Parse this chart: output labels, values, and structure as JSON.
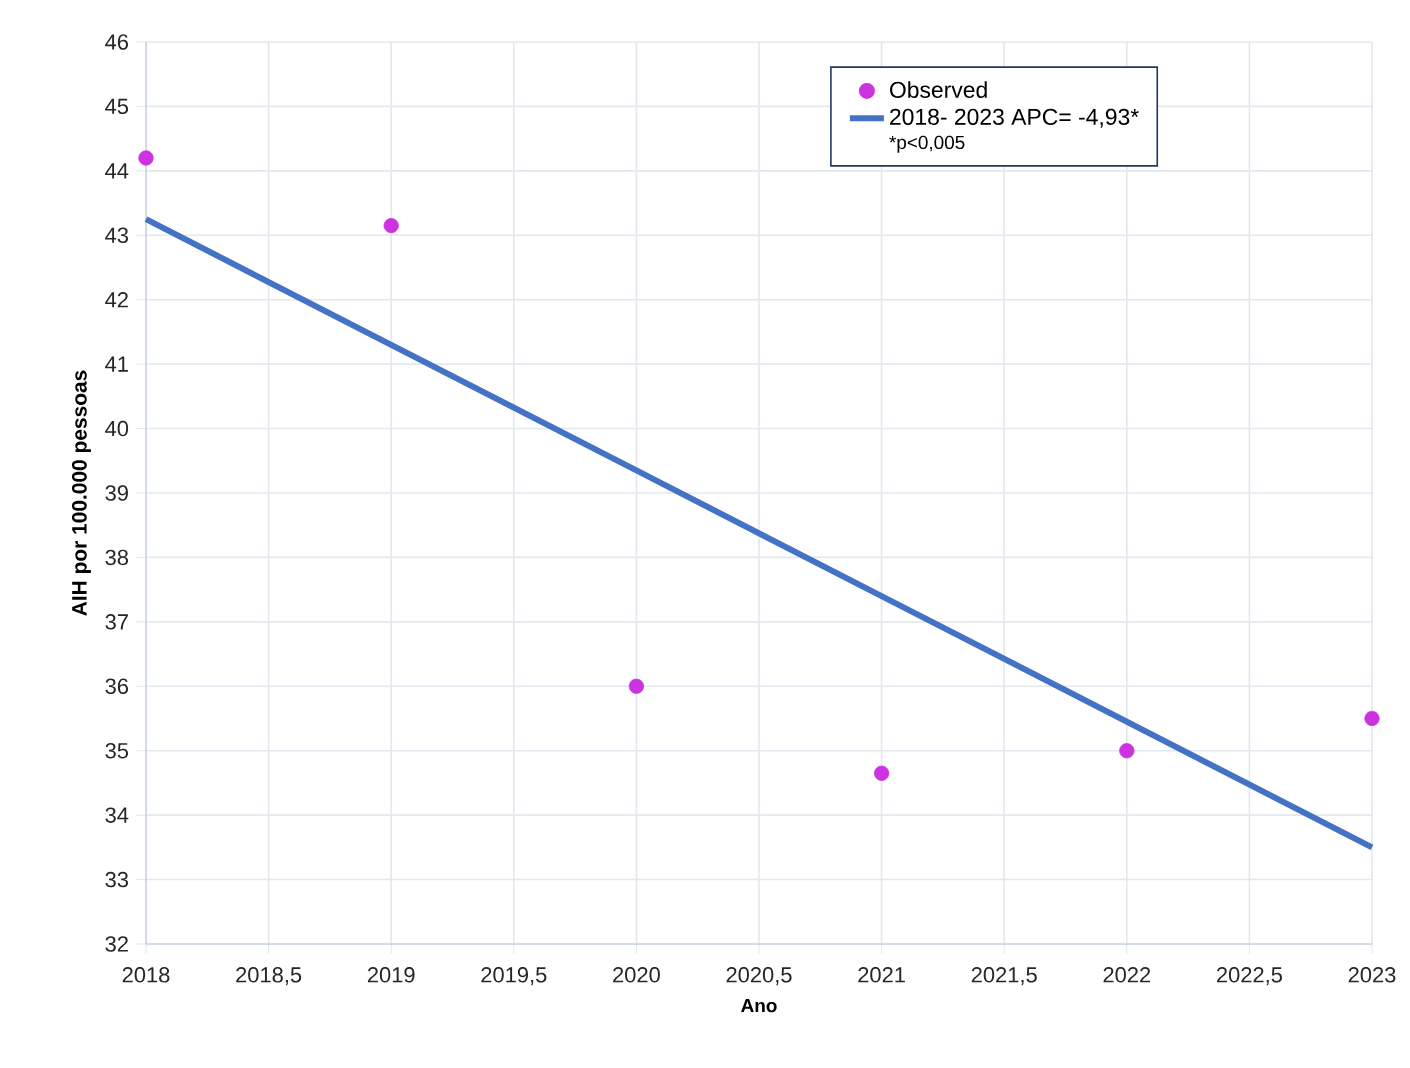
{
  "chart_data": {
    "type": "scatter",
    "xlabel": "Ano",
    "ylabel": "AIH por 100.000 pessoas",
    "series": [
      {
        "name": "Observed",
        "type": "scatter",
        "color": "#cc33e0",
        "marker": "circle",
        "x": [
          2018,
          2019,
          2020,
          2021,
          2022,
          2023
        ],
        "values": [
          44.2,
          43.15,
          36.0,
          34.65,
          35.0,
          35.5
        ]
      },
      {
        "name": "2018- 2023 APC= -4,93*",
        "type": "line",
        "color": "#4472c4",
        "line_style": "solid",
        "x": [
          2018,
          2019,
          2020,
          2021,
          2022,
          2023
        ],
        "values": [
          43.25,
          41.3,
          39.35,
          37.4,
          35.45,
          33.5
        ]
      }
    ],
    "annotations": [
      "*p<0,005"
    ],
    "xlim": [
      2018,
      2023
    ],
    "ylim": [
      32,
      46
    ],
    "xticks": [
      2018,
      {
        "value": 2018.5,
        "label": "2018,5"
      },
      2019,
      {
        "value": 2019.5,
        "label": "2019,5"
      },
      2020,
      {
        "value": 2020.5,
        "label": "2020,5"
      },
      2021,
      {
        "value": 2021.5,
        "label": "2021,5"
      },
      2022,
      {
        "value": 2022.5,
        "label": "2022,5"
      },
      2023
    ],
    "yticks": [
      32,
      33,
      34,
      35,
      36,
      37,
      38,
      39,
      40,
      41,
      42,
      43,
      44,
      45,
      46
    ],
    "grid": true,
    "legend": "top right"
  }
}
